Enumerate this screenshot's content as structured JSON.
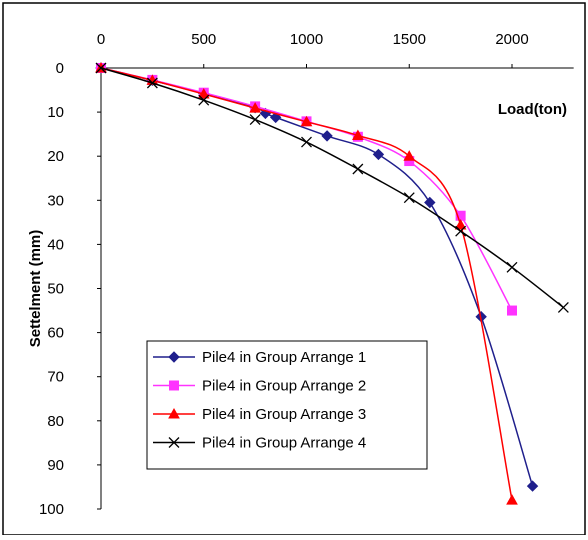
{
  "chart_data": {
    "type": "line",
    "title": "",
    "xlabel": "Load(ton)",
    "ylabel": "Settelment (mm)",
    "xlim": [
      0,
      2300
    ],
    "ylim": [
      0,
      100
    ],
    "y_inverted": true,
    "x_axis_position": "top",
    "x_ticks": [
      0,
      500,
      1000,
      1500,
      2000
    ],
    "y_ticks": [
      0,
      10,
      20,
      30,
      40,
      50,
      60,
      70,
      80,
      90,
      100
    ],
    "grid": false,
    "legend_position": "bottom-left",
    "series": [
      {
        "name": "Pile4 in  Group Arrange 1",
        "color": "#1f1f8c",
        "marker": "diamond",
        "points": [
          [
            0,
            0
          ],
          [
            250,
            2.8
          ],
          [
            500,
            5.8
          ],
          [
            750,
            9
          ],
          [
            800,
            10.3
          ],
          [
            850,
            11.2
          ],
          [
            1100,
            15.4
          ],
          [
            1350,
            19.6
          ],
          [
            1600,
            30.5
          ],
          [
            1850,
            56.4
          ],
          [
            2100,
            94.8
          ]
        ]
      },
      {
        "name": "Pile4 in  Group Arrange 2",
        "color": "#ff33ff",
        "marker": "square",
        "points": [
          [
            0,
            0
          ],
          [
            250,
            2.7
          ],
          [
            500,
            5.6
          ],
          [
            750,
            8.7
          ],
          [
            1000,
            12.1
          ],
          [
            1250,
            15.6
          ],
          [
            1500,
            21.1
          ],
          [
            1750,
            33.5
          ],
          [
            2000,
            55
          ]
        ]
      },
      {
        "name": "Pile4 in  Group Arrange 3",
        "color": "#ff0000",
        "marker": "triangle",
        "points": [
          [
            0,
            0
          ],
          [
            250,
            2.8
          ],
          [
            500,
            5.9
          ],
          [
            750,
            9.1
          ],
          [
            1000,
            12.2
          ],
          [
            1250,
            15.3
          ],
          [
            1500,
            20
          ],
          [
            1750,
            35.6
          ],
          [
            2000,
            98
          ]
        ]
      },
      {
        "name": "Pile4 in  Group Arrange 4",
        "color": "#000000",
        "marker": "x",
        "points": [
          [
            0,
            0
          ],
          [
            250,
            3.4
          ],
          [
            500,
            7.3
          ],
          [
            750,
            11.7
          ],
          [
            1000,
            16.8
          ],
          [
            1250,
            22.9
          ],
          [
            1500,
            29.4
          ],
          [
            1750,
            37
          ],
          [
            2000,
            45.2
          ],
          [
            2250,
            54.3
          ]
        ]
      }
    ]
  }
}
